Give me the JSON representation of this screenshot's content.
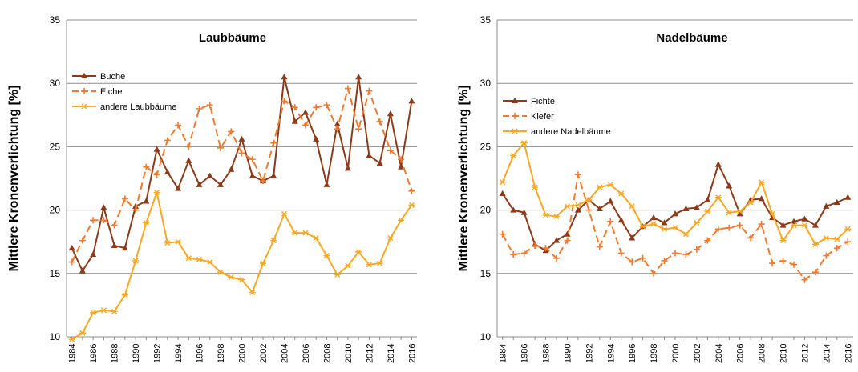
{
  "chart_data": [
    {
      "type": "line",
      "title": "Laubbäume",
      "ylabel": "Mittlere Kronenverlichtung [%]",
      "xlabel": "",
      "ylim": [
        10,
        35
      ],
      "yticks": [
        10,
        15,
        20,
        25,
        30,
        35
      ],
      "x": [
        1984,
        1985,
        1986,
        1987,
        1988,
        1989,
        1990,
        1991,
        1992,
        1993,
        1994,
        1995,
        1996,
        1997,
        1998,
        1999,
        2000,
        2001,
        2002,
        2003,
        2004,
        2005,
        2006,
        2007,
        2008,
        2009,
        2010,
        2011,
        2012,
        2013,
        2014,
        2015,
        2016
      ],
      "xtick_labels": [
        "1984",
        "1986",
        "1988",
        "1990",
        "1992",
        "1994",
        "1996",
        "1998",
        "2000",
        "2002",
        "2004",
        "2006",
        "2008",
        "2010",
        "2012",
        "2014",
        "2016"
      ],
      "grid": "horizontal",
      "legend_position": "top-left",
      "series": [
        {
          "name": "Buche",
          "color": "#8B3A1A",
          "style": "solid",
          "marker": "triangle",
          "values": [
            17.0,
            15.2,
            16.5,
            20.2,
            17.2,
            17.0,
            20.3,
            20.7,
            24.8,
            23.0,
            21.7,
            23.9,
            22.0,
            22.7,
            22.0,
            23.2,
            25.6,
            22.7,
            22.3,
            22.7,
            30.5,
            27.0,
            27.7,
            25.6,
            22.0,
            26.8,
            23.3,
            30.5,
            24.3,
            23.7,
            27.6,
            23.4,
            28.6
          ]
        },
        {
          "name": "Eiche",
          "color": "#F07A30",
          "style": "dashed",
          "marker": "plus",
          "values": [
            15.9,
            17.6,
            19.2,
            19.2,
            18.8,
            20.9,
            20.0,
            23.4,
            22.8,
            25.5,
            26.7,
            25.0,
            28.0,
            28.3,
            24.9,
            26.2,
            24.5,
            24.0,
            22.3,
            25.3,
            28.6,
            28.1,
            26.7,
            28.1,
            28.3,
            26.4,
            29.6,
            26.4,
            29.4,
            27.0,
            24.7,
            24.0,
            21.5
          ]
        },
        {
          "name": "andere Laubbäume",
          "color": "#F9A825",
          "style": "solid",
          "marker": "star",
          "values": [
            9.8,
            10.3,
            11.9,
            12.1,
            12.0,
            13.3,
            16.0,
            19.0,
            21.4,
            17.4,
            17.5,
            16.2,
            16.1,
            15.9,
            15.1,
            14.7,
            14.5,
            13.5,
            15.8,
            17.6,
            19.7,
            18.2,
            18.2,
            17.8,
            16.4,
            14.9,
            15.6,
            16.7,
            15.7,
            15.8,
            17.8,
            19.2,
            20.4
          ]
        }
      ]
    },
    {
      "type": "line",
      "title": "Nadelbäume",
      "ylabel": "Mittlere Kronenverlichtung [%]",
      "xlabel": "",
      "ylim": [
        10,
        35
      ],
      "yticks": [
        10,
        15,
        20,
        25,
        30,
        35
      ],
      "x": [
        1984,
        1985,
        1986,
        1987,
        1988,
        1989,
        1990,
        1991,
        1992,
        1993,
        1994,
        1995,
        1996,
        1997,
        1998,
        1999,
        2000,
        2001,
        2002,
        2003,
        2004,
        2005,
        2006,
        2007,
        2008,
        2009,
        2010,
        2011,
        2012,
        2013,
        2014,
        2015,
        2016
      ],
      "xtick_labels": [
        "1984",
        "1986",
        "1988",
        "1990",
        "1992",
        "1994",
        "1996",
        "1998",
        "2000",
        "2002",
        "2004",
        "2006",
        "2008",
        "2010",
        "2012",
        "2014",
        "2016"
      ],
      "grid": "horizontal",
      "legend_position": "top-left",
      "series": [
        {
          "name": "Fichte",
          "color": "#8B3A1A",
          "style": "solid",
          "marker": "triangle",
          "values": [
            21.3,
            20.0,
            19.8,
            17.3,
            16.8,
            17.6,
            18.1,
            20.0,
            20.8,
            20.1,
            20.7,
            19.2,
            17.8,
            18.7,
            19.4,
            19.0,
            19.7,
            20.1,
            20.2,
            20.8,
            23.6,
            21.9,
            19.7,
            20.8,
            20.9,
            19.4,
            18.8,
            19.1,
            19.3,
            18.8,
            20.3,
            20.6,
            21.0
          ]
        },
        {
          "name": "Kiefer",
          "color": "#F07A30",
          "style": "dashed",
          "marker": "plus",
          "values": [
            18.1,
            16.5,
            16.6,
            17.2,
            17.0,
            16.2,
            17.6,
            22.8,
            20.0,
            17.1,
            19.1,
            16.6,
            15.9,
            16.2,
            15.0,
            16.0,
            16.6,
            16.5,
            16.9,
            17.6,
            18.5,
            18.6,
            18.8,
            17.8,
            18.9,
            15.8,
            16.0,
            15.7,
            14.5,
            15.1,
            16.4,
            17.0,
            17.5
          ]
        },
        {
          "name": "andere Nadelbäume",
          "color": "#F9A825",
          "style": "solid",
          "marker": "star",
          "values": [
            22.2,
            24.3,
            25.3,
            21.8,
            19.6,
            19.5,
            20.3,
            20.4,
            20.8,
            21.8,
            22.0,
            21.3,
            20.3,
            18.7,
            18.9,
            18.5,
            18.6,
            18.1,
            19.0,
            19.9,
            21.0,
            19.8,
            19.9,
            20.6,
            22.2,
            19.7,
            17.6,
            18.8,
            18.8,
            17.3,
            17.8,
            17.7,
            18.5
          ]
        }
      ]
    }
  ]
}
